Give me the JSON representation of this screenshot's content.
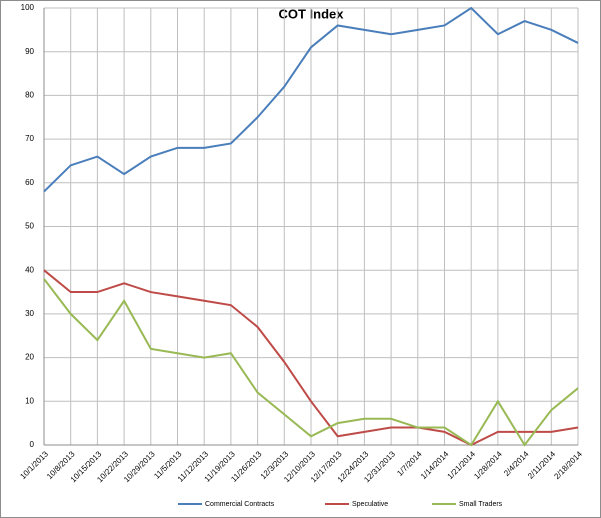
{
  "chart_data": {
    "type": "line",
    "title": "COT Index",
    "categories": [
      "10/1/2013",
      "10/8/2013",
      "10/15/2013",
      "10/22/2013",
      "10/29/2013",
      "11/5/2013",
      "11/12/2013",
      "11/19/2013",
      "11/26/2013",
      "12/3/2013",
      "12/10/2013",
      "12/17/2013",
      "12/24/2013",
      "12/31/2013",
      "1/7/2014",
      "1/14/2014",
      "1/21/2014",
      "1/28/2014",
      "2/4/2014",
      "2/11/2014",
      "2/18/2014"
    ],
    "series": [
      {
        "name": "Commercial Contracts",
        "color": "#4a7ebb",
        "values": [
          58,
          64,
          66,
          62,
          66,
          68,
          68,
          69,
          75,
          82,
          91,
          96,
          95,
          94,
          95,
          96,
          100,
          94,
          97,
          95,
          92
        ]
      },
      {
        "name": "Speculative",
        "color": "#be4b48",
        "values": [
          40,
          35,
          35,
          37,
          35,
          34,
          33,
          32,
          27,
          19,
          10,
          2,
          3,
          4,
          4,
          3,
          0,
          3,
          3,
          3,
          4
        ]
      },
      {
        "name": "Small Traders",
        "color": "#98b954",
        "values": [
          38,
          30,
          24,
          33,
          22,
          21,
          20,
          21,
          12,
          7,
          2,
          5,
          6,
          6,
          4,
          4,
          0,
          10,
          0,
          8,
          13
        ]
      }
    ],
    "ylim": [
      0,
      100
    ],
    "yticks": [
      0,
      10,
      20,
      30,
      40,
      50,
      60,
      70,
      80,
      90,
      100
    ],
    "grid": true,
    "legend": "bottom"
  }
}
